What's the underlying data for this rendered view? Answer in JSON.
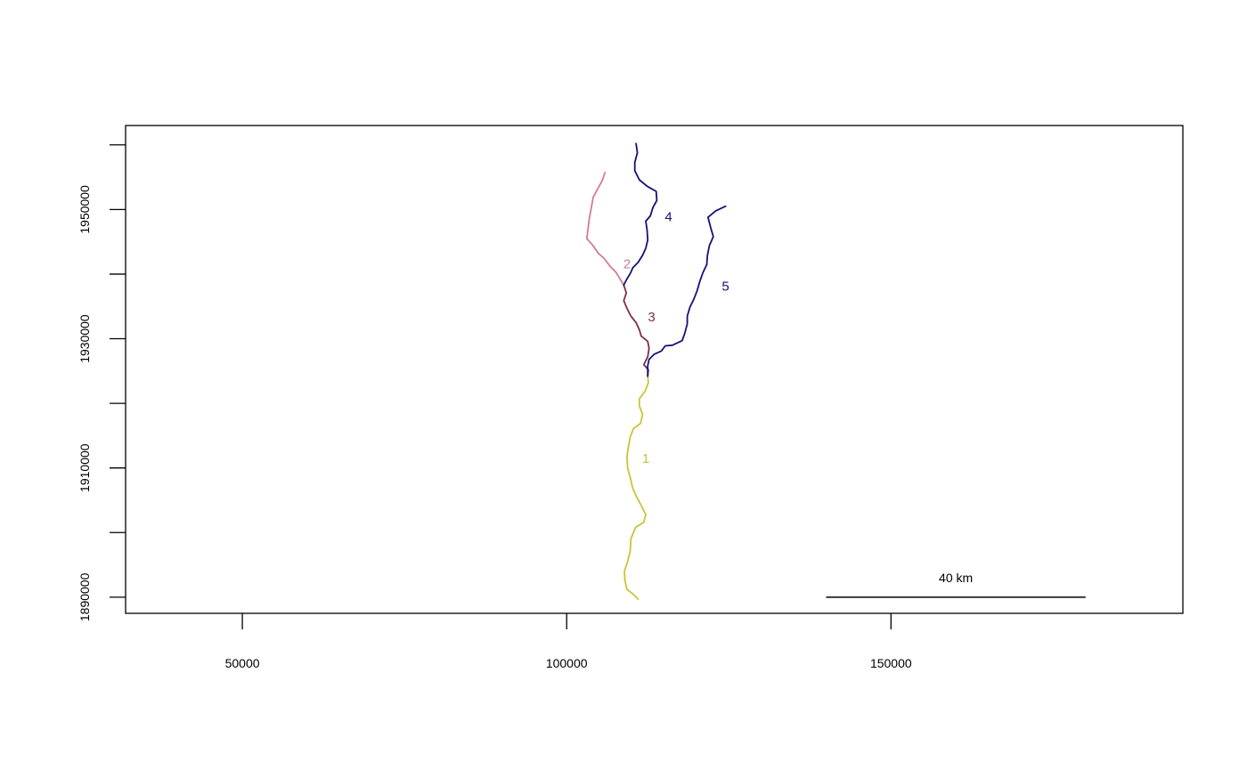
{
  "chart_data": {
    "type": "line",
    "title": "",
    "xlabel": "",
    "ylabel": "",
    "xlim": [
      32000,
      195000
    ],
    "ylim": [
      1887500,
      1963000
    ],
    "x_ticks": [
      50000,
      100000,
      150000
    ],
    "x_tick_labels": [
      "50000",
      "100000",
      "150000"
    ],
    "y_ticks": [
      1890000,
      1900000,
      1910000,
      1920000,
      1930000,
      1940000,
      1950000,
      1960000
    ],
    "y_tick_labels": [
      {
        "value": 1890000,
        "label": "1890000"
      },
      {
        "value": 1910000,
        "label": "1910000"
      },
      {
        "value": 1930000,
        "label": "1930000"
      },
      {
        "value": 1950000,
        "label": "1950000"
      }
    ],
    "grid": false,
    "scale_bar": {
      "label": "40 km",
      "x_start": 140000,
      "x_end": 180000,
      "y": 1890000
    },
    "series": [
      {
        "name": "1",
        "color": "#c9c43a",
        "label_pos": [
          112200,
          1911500
        ],
        "points": [
          [
            111000,
            1889700
          ],
          [
            110200,
            1890500
          ],
          [
            109300,
            1891200
          ],
          [
            109000,
            1892500
          ],
          [
            108900,
            1894000
          ],
          [
            109400,
            1895500
          ],
          [
            109800,
            1897200
          ],
          [
            109900,
            1899000
          ],
          [
            110600,
            1900800
          ],
          [
            111900,
            1901600
          ],
          [
            112200,
            1902800
          ],
          [
            111500,
            1904200
          ],
          [
            110800,
            1905500
          ],
          [
            110200,
            1906800
          ],
          [
            109800,
            1908500
          ],
          [
            109400,
            1910000
          ],
          [
            109300,
            1911800
          ],
          [
            109500,
            1913200
          ],
          [
            109800,
            1914800
          ],
          [
            110300,
            1916100
          ],
          [
            111400,
            1916900
          ],
          [
            111700,
            1918300
          ],
          [
            111200,
            1919600
          ],
          [
            111200,
            1920700
          ],
          [
            112100,
            1921900
          ],
          [
            112600,
            1923200
          ],
          [
            112500,
            1924200
          ]
        ]
      },
      {
        "name": "2",
        "color": "#d27b9d",
        "label_pos": [
          109300,
          1941600
        ],
        "points": [
          [
            105900,
            1955700
          ],
          [
            105500,
            1954500
          ],
          [
            104800,
            1953200
          ],
          [
            104100,
            1951900
          ],
          [
            103800,
            1950300
          ],
          [
            103500,
            1948700
          ],
          [
            103300,
            1947000
          ],
          [
            103100,
            1945500
          ],
          [
            104000,
            1944500
          ],
          [
            104900,
            1943200
          ],
          [
            105800,
            1942400
          ],
          [
            106700,
            1941200
          ],
          [
            107600,
            1940300
          ],
          [
            108200,
            1939300
          ],
          [
            108800,
            1938300
          ]
        ]
      },
      {
        "name": "3",
        "color": "#7c2e4c",
        "label_pos": [
          113100,
          1933400
        ],
        "points": [
          [
            108800,
            1938300
          ],
          [
            109200,
            1937100
          ],
          [
            108800,
            1935900
          ],
          [
            109300,
            1934700
          ],
          [
            109900,
            1933500
          ],
          [
            110700,
            1932500
          ],
          [
            111200,
            1931400
          ],
          [
            111500,
            1930400
          ],
          [
            112500,
            1929600
          ],
          [
            112700,
            1928500
          ],
          [
            112500,
            1927200
          ],
          [
            111900,
            1926000
          ],
          [
            112600,
            1925200
          ],
          [
            112500,
            1924200
          ]
        ]
      },
      {
        "name": "4",
        "color": "#131276",
        "label_pos": [
          115700,
          1948900
        ],
        "points": [
          [
            110700,
            1960200
          ],
          [
            110900,
            1958800
          ],
          [
            110500,
            1957300
          ],
          [
            110500,
            1956000
          ],
          [
            111200,
            1954600
          ],
          [
            112400,
            1953600
          ],
          [
            113800,
            1952800
          ],
          [
            113900,
            1951400
          ],
          [
            113300,
            1950300
          ],
          [
            112900,
            1949000
          ],
          [
            112200,
            1948200
          ],
          [
            112400,
            1946800
          ],
          [
            112500,
            1945300
          ],
          [
            112200,
            1944000
          ],
          [
            111700,
            1942900
          ],
          [
            111000,
            1941800
          ],
          [
            110200,
            1941000
          ],
          [
            109800,
            1940100
          ],
          [
            109200,
            1939100
          ],
          [
            108800,
            1938300
          ]
        ]
      },
      {
        "name": "5",
        "color": "#131276",
        "label_pos": [
          124500,
          1938100
        ],
        "points": [
          [
            124500,
            1950500
          ],
          [
            123000,
            1949800
          ],
          [
            121800,
            1948800
          ],
          [
            122200,
            1947200
          ],
          [
            122600,
            1945800
          ],
          [
            122000,
            1944400
          ],
          [
            121700,
            1942900
          ],
          [
            121600,
            1941500
          ],
          [
            121000,
            1940200
          ],
          [
            120500,
            1938800
          ],
          [
            120100,
            1937400
          ],
          [
            119600,
            1936100
          ],
          [
            119000,
            1934900
          ],
          [
            118600,
            1933500
          ],
          [
            118600,
            1932300
          ],
          [
            118200,
            1930800
          ],
          [
            117800,
            1929700
          ],
          [
            116300,
            1929000
          ],
          [
            115200,
            1928900
          ],
          [
            114600,
            1928100
          ],
          [
            113500,
            1927600
          ],
          [
            112700,
            1926800
          ],
          [
            112500,
            1925800
          ],
          [
            112500,
            1924200
          ]
        ]
      }
    ]
  }
}
